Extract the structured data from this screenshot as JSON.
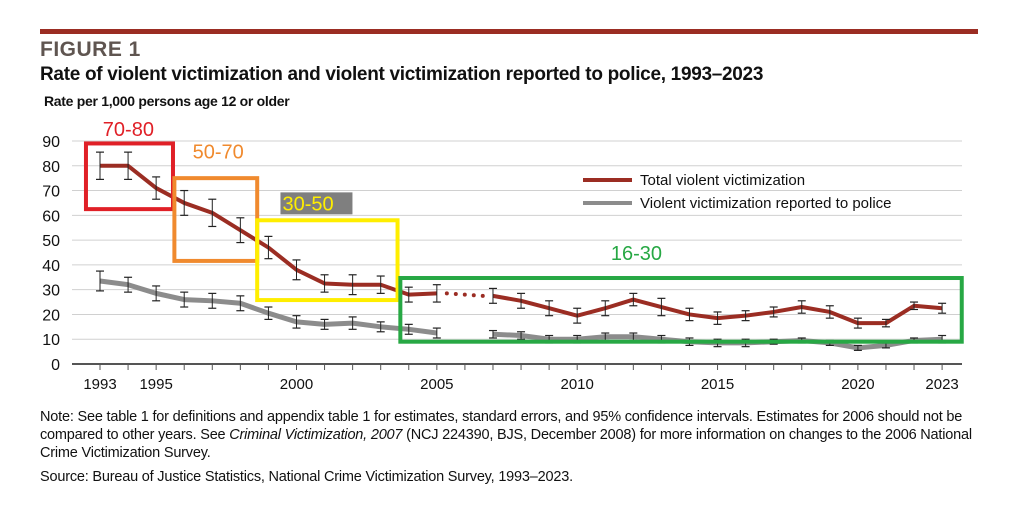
{
  "figure_label": "FIGURE 1",
  "title": "Rate of violent victimization and violent victimization reported to police, 1993–2023",
  "note": {
    "part1": "Note: See table 1 for definitions and appendix table 1 for estimates, standard errors, and 95% confidence intervals. Estimates for 2006 should not be compared to other years. See ",
    "italic": "Criminal Victimization, 2007",
    "part2": " (NCJ 224390, BJS, December 2008) for more information on changes to the 2006 National Crime Victimization Survey."
  },
  "source": "Source: Bureau of Justice Statistics, National Crime Victimization Survey, 1993–2023.",
  "colors": {
    "rule": "#9b2d23",
    "total": "#9b2d23",
    "reported": "#8c8c8c",
    "error_bar": "#222222"
  },
  "chart_data": {
    "type": "line",
    "ylabel": "Rate per 1,000 persons age 12 or older",
    "ylim": [
      0,
      90
    ],
    "yticks": [
      0,
      10,
      20,
      30,
      40,
      50,
      60,
      70,
      80,
      90
    ],
    "xlim": [
      1993,
      2023
    ],
    "xtick_labels": [
      "1993",
      "1995",
      "2000",
      "2005",
      "2010",
      "2015",
      "2020",
      "2023"
    ],
    "grid": "horizontal",
    "legend_placement": "top-right",
    "x": [
      1993,
      1994,
      1995,
      1996,
      1997,
      1998,
      1999,
      2000,
      2001,
      2002,
      2003,
      2004,
      2005,
      2006,
      2007,
      2008,
      2009,
      2010,
      2011,
      2012,
      2013,
      2014,
      2015,
      2016,
      2017,
      2018,
      2019,
      2020,
      2021,
      2022,
      2023
    ],
    "gap_note": "2006 not shown; dotted line connects 2005 and 2007",
    "series": [
      {
        "name": "Total violent victimization",
        "color": "#9b2d23",
        "values": [
          80,
          80,
          71,
          65,
          61,
          54,
          47,
          38,
          32.5,
          32,
          32,
          28,
          28.5,
          null,
          27.5,
          25.5,
          22.5,
          19.5,
          22.5,
          26,
          23,
          20,
          18.5,
          19.5,
          21,
          23,
          21,
          16.5,
          16.5,
          23.5,
          22.5
        ],
        "error": [
          5.5,
          5.5,
          4.5,
          5,
          5.5,
          5,
          4.5,
          4,
          3.5,
          4,
          3.5,
          3,
          3.5,
          null,
          3,
          3,
          3,
          3,
          3,
          2.5,
          3.5,
          2.5,
          2.5,
          2,
          2,
          2.5,
          2.5,
          2,
          1.5,
          1.5,
          2
        ]
      },
      {
        "name": "Violent victimization reported to police",
        "color": "#8c8c8c",
        "values": [
          33.5,
          32,
          28.5,
          26,
          25.5,
          24.5,
          20.5,
          17,
          16,
          16.5,
          15,
          14,
          12.5,
          null,
          12,
          11.5,
          10,
          10,
          11,
          11,
          10,
          9,
          8.5,
          8.5,
          9,
          9.5,
          8.5,
          6.5,
          7.5,
          9.5,
          10
        ],
        "error": [
          4,
          3,
          3,
          3,
          3,
          3,
          2.5,
          2.5,
          2,
          2.5,
          2,
          2,
          2,
          null,
          1.5,
          1.5,
          1.5,
          1.5,
          1.5,
          1.5,
          1.5,
          1.5,
          1.5,
          1.5,
          1,
          1,
          1,
          1,
          1,
          1,
          1.5
        ]
      }
    ],
    "annotations": [
      {
        "label": "70-80",
        "color": "#e02027",
        "box": {
          "x": [
            1992.5,
            1995.6
          ],
          "y": [
            62.5,
            89
          ]
        },
        "label_at": {
          "x": 1993.1,
          "y": 92
        }
      },
      {
        "label": "50-70",
        "color": "#f08a2e",
        "box": {
          "x": [
            1995.65,
            1998.6
          ],
          "y": [
            41.6,
            75
          ]
        },
        "label_at": {
          "x": 1996.3,
          "y": 83
        }
      },
      {
        "label": "30-50",
        "color": "#ffee00",
        "label_bg": "#7f7f7f",
        "box": {
          "x": [
            1998.6,
            2003.6
          ],
          "y": [
            25.8,
            58
          ]
        },
        "label_at": {
          "x": 1999.5,
          "y": 62
        }
      },
      {
        "label": "16-30",
        "color": "#27a844",
        "box": {
          "x": [
            2003.7,
            2023.7
          ],
          "y": [
            9,
            34.7
          ]
        },
        "label_at": {
          "x": 2011.2,
          "y": 42
        }
      }
    ]
  }
}
